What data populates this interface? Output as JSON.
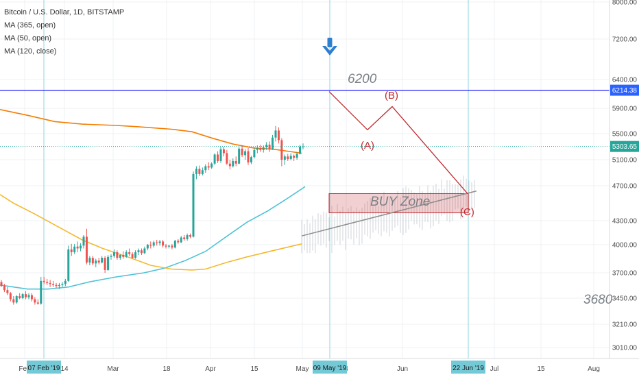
{
  "legend": {
    "title": "Bitcoin / U.S. Dollar, 1D, BITSTAMP",
    "ma365": "MA (365, open)",
    "ma50": "MA (50, open)",
    "ma120": "MA (120, close)"
  },
  "annotations": {
    "target": "6200",
    "support": "3680",
    "buy_zone": "BUY Zone",
    "wave_a": "(A)",
    "wave_b": "(B)",
    "wave_c": "(C)"
  },
  "colors": {
    "up": "#26a69a",
    "down": "#ef5350",
    "ma365": "#f57c00",
    "ma50": "#4fc3d7",
    "ma120": "#f5b82e",
    "resistance": "#1c1cff",
    "wave": "#c2272d",
    "vline": "#8fd6e0",
    "arrow": "#2e7fd0",
    "label_grey": "#7b8086",
    "tag": "#2962ff"
  },
  "icons": {
    "arrow": "arrow-down-icon"
  },
  "chart_data": {
    "type": "candlestick",
    "title": "Bitcoin / U.S. Dollar, 1D, BITSTAMP",
    "price_ticks": [
      "8000.00",
      "7200.00",
      "6400.00",
      "5900.00",
      "5500.00",
      "5100.00",
      "4700.00",
      "4300.00",
      "4000.00",
      "3700.00",
      "3450.00",
      "3210.00",
      "3010.00"
    ],
    "time_labels": [
      "Feb",
      "14",
      "Mar",
      "18",
      "Apr",
      "15",
      "May",
      "4",
      "Jun",
      "Jul",
      "15",
      "Aug"
    ],
    "date_tags": [
      "07 Feb '19",
      "09 May '19",
      "22 Jun '19"
    ],
    "last_price": "5303.65",
    "resistance_price": "6214.38",
    "price_range": [
      2900,
      8100
    ],
    "candles": [
      [
        3610,
        3630,
        3560,
        3570
      ],
      [
        3570,
        3590,
        3510,
        3530
      ],
      [
        3530,
        3560,
        3480,
        3500
      ],
      [
        3500,
        3510,
        3420,
        3440
      ],
      [
        3440,
        3470,
        3390,
        3410
      ],
      [
        3410,
        3480,
        3400,
        3470
      ],
      [
        3470,
        3500,
        3440,
        3450
      ],
      [
        3450,
        3500,
        3440,
        3490
      ],
      [
        3490,
        3520,
        3440,
        3460
      ],
      [
        3460,
        3500,
        3440,
        3480
      ],
      [
        3480,
        3500,
        3420,
        3440
      ],
      [
        3440,
        3460,
        3390,
        3410
      ],
      [
        3410,
        3440,
        3390,
        3400
      ],
      [
        3400,
        3660,
        3390,
        3620
      ],
      [
        3620,
        3660,
        3590,
        3610
      ],
      [
        3610,
        3640,
        3580,
        3600
      ],
      [
        3600,
        3630,
        3560,
        3590
      ],
      [
        3590,
        3620,
        3560,
        3580
      ],
      [
        3580,
        3600,
        3550,
        3570
      ],
      [
        3570,
        3600,
        3540,
        3580
      ],
      [
        3580,
        3610,
        3560,
        3590
      ],
      [
        3590,
        3640,
        3570,
        3620
      ],
      [
        3620,
        3990,
        3610,
        3950
      ],
      [
        3950,
        4010,
        3880,
        3920
      ],
      [
        3920,
        4010,
        3900,
        3980
      ],
      [
        3980,
        4040,
        3920,
        3960
      ],
      [
        3960,
        4020,
        3930,
        3990
      ],
      [
        3990,
        4120,
        3960,
        4100
      ],
      [
        4100,
        4200,
        3790,
        3810
      ],
      [
        3810,
        3880,
        3780,
        3860
      ],
      [
        3860,
        3880,
        3780,
        3800
      ],
      [
        3800,
        3850,
        3760,
        3830
      ],
      [
        3830,
        3860,
        3790,
        3810
      ],
      [
        3810,
        3880,
        3800,
        3860
      ],
      [
        3860,
        3880,
        3700,
        3730
      ],
      [
        3730,
        3890,
        3720,
        3870
      ],
      [
        3870,
        3900,
        3840,
        3880
      ],
      [
        3880,
        3950,
        3860,
        3920
      ],
      [
        3920,
        3940,
        3840,
        3860
      ],
      [
        3860,
        3900,
        3840,
        3890
      ],
      [
        3890,
        3930,
        3850,
        3870
      ],
      [
        3870,
        3940,
        3860,
        3920
      ],
      [
        3920,
        3960,
        3880,
        3900
      ],
      [
        3900,
        3920,
        3850,
        3860
      ],
      [
        3860,
        3940,
        3850,
        3920
      ],
      [
        3920,
        3960,
        3890,
        3940
      ],
      [
        3940,
        3960,
        3890,
        3910
      ],
      [
        3910,
        3980,
        3900,
        3960
      ],
      [
        3960,
        4010,
        3940,
        4000
      ],
      [
        4000,
        4040,
        3960,
        3990
      ],
      [
        3990,
        4050,
        3970,
        4030
      ],
      [
        4030,
        4060,
        3990,
        4020
      ],
      [
        4020,
        4060,
        3990,
        4040
      ],
      [
        4040,
        4060,
        3970,
        3990
      ],
      [
        3990,
        4010,
        3960,
        3980
      ],
      [
        3980,
        4000,
        3960,
        3990
      ],
      [
        3990,
        4010,
        3950,
        3970
      ],
      [
        3970,
        4060,
        3960,
        4050
      ],
      [
        4050,
        4070,
        4010,
        4030
      ],
      [
        4030,
        4110,
        4020,
        4090
      ],
      [
        4090,
        4120,
        4050,
        4070
      ],
      [
        4070,
        4140,
        4050,
        4120
      ],
      [
        4120,
        4140,
        4080,
        4100
      ],
      [
        4100,
        4920,
        4090,
        4880
      ],
      [
        4880,
        5000,
        4800,
        4960
      ],
      [
        4960,
        5010,
        4850,
        4880
      ],
      [
        4880,
        4980,
        4860,
        4940
      ],
      [
        4940,
        5030,
        4900,
        5000
      ],
      [
        5000,
        5060,
        4940,
        4980
      ],
      [
        4980,
        5060,
        4960,
        5040
      ],
      [
        5040,
        5200,
        5020,
        5180
      ],
      [
        5180,
        5230,
        5050,
        5080
      ],
      [
        5080,
        5300,
        5050,
        5260
      ],
      [
        5260,
        5300,
        5150,
        5200
      ],
      [
        5200,
        5250,
        5020,
        5040
      ],
      [
        5040,
        5100,
        4950,
        5000
      ],
      [
        5000,
        5120,
        4980,
        5080
      ],
      [
        5080,
        5150,
        5000,
        5040
      ],
      [
        5040,
        5300,
        5030,
        5270
      ],
      [
        5270,
        5320,
        5140,
        5170
      ],
      [
        5170,
        5260,
        5100,
        5230
      ],
      [
        5230,
        5280,
        5020,
        5060
      ],
      [
        5060,
        5160,
        5030,
        5140
      ],
      [
        5140,
        5290,
        5120,
        5250
      ],
      [
        5250,
        5320,
        5200,
        5280
      ],
      [
        5280,
        5330,
        5220,
        5250
      ],
      [
        5250,
        5320,
        5210,
        5290
      ],
      [
        5290,
        5370,
        5250,
        5330
      ],
      [
        5330,
        5380,
        5220,
        5260
      ],
      [
        5260,
        5480,
        5250,
        5440
      ],
      [
        5440,
        5620,
        5380,
        5550
      ],
      [
        5550,
        5600,
        5350,
        5400
      ],
      [
        5400,
        5430,
        5000,
        5100
      ],
      [
        5100,
        5180,
        5020,
        5150
      ],
      [
        5150,
        5190,
        5080,
        5110
      ],
      [
        5110,
        5200,
        5090,
        5160
      ],
      [
        5160,
        5180,
        5080,
        5130
      ],
      [
        5130,
        5220,
        5100,
        5190
      ],
      [
        5190,
        5330,
        5180,
        5300
      ],
      [
        5300,
        5350,
        5260,
        5304
      ]
    ],
    "ma365": [
      [
        0,
        5880
      ],
      [
        40,
        5790
      ],
      [
        80,
        5690
      ],
      [
        120,
        5650
      ],
      [
        170,
        5630
      ],
      [
        200,
        5610
      ],
      [
        250,
        5570
      ],
      [
        280,
        5530
      ],
      [
        310,
        5430
      ],
      [
        340,
        5340
      ],
      [
        370,
        5280
      ],
      [
        400,
        5260
      ],
      [
        440,
        5200
      ]
    ],
    "ma50": [
      [
        0,
        3580
      ],
      [
        40,
        3540
      ],
      [
        70,
        3540
      ],
      [
        100,
        3560
      ],
      [
        130,
        3610
      ],
      [
        170,
        3660
      ],
      [
        210,
        3700
      ],
      [
        240,
        3750
      ],
      [
        270,
        3830
      ],
      [
        300,
        3930
      ],
      [
        330,
        4100
      ],
      [
        360,
        4280
      ],
      [
        390,
        4410
      ],
      [
        420,
        4560
      ],
      [
        445,
        4690
      ]
    ],
    "ma120": [
      [
        0,
        4600
      ],
      [
        20,
        4500
      ],
      [
        50,
        4380
      ],
      [
        90,
        4200
      ],
      [
        120,
        4060
      ],
      [
        150,
        3960
      ],
      [
        190,
        3860
      ],
      [
        220,
        3780
      ],
      [
        250,
        3740
      ],
      [
        280,
        3730
      ],
      [
        300,
        3740
      ],
      [
        330,
        3810
      ],
      [
        360,
        3870
      ],
      [
        400,
        3940
      ],
      [
        440,
        4010
      ]
    ],
    "forecast_ghost": {
      "y_min": 3910,
      "y_max": 4870
    },
    "buy_zone": {
      "price_top": 4610,
      "price_bottom": 4390
    },
    "wave_path": [
      [
        480,
        6190
      ],
      [
        536,
        5560
      ],
      [
        572,
        5930
      ],
      [
        682,
        4610
      ]
    ],
    "trend_line": [
      [
        440,
        4110
      ],
      [
        695,
        4640
      ]
    ],
    "vertical_markers": [
      64,
      481,
      683
    ]
  }
}
